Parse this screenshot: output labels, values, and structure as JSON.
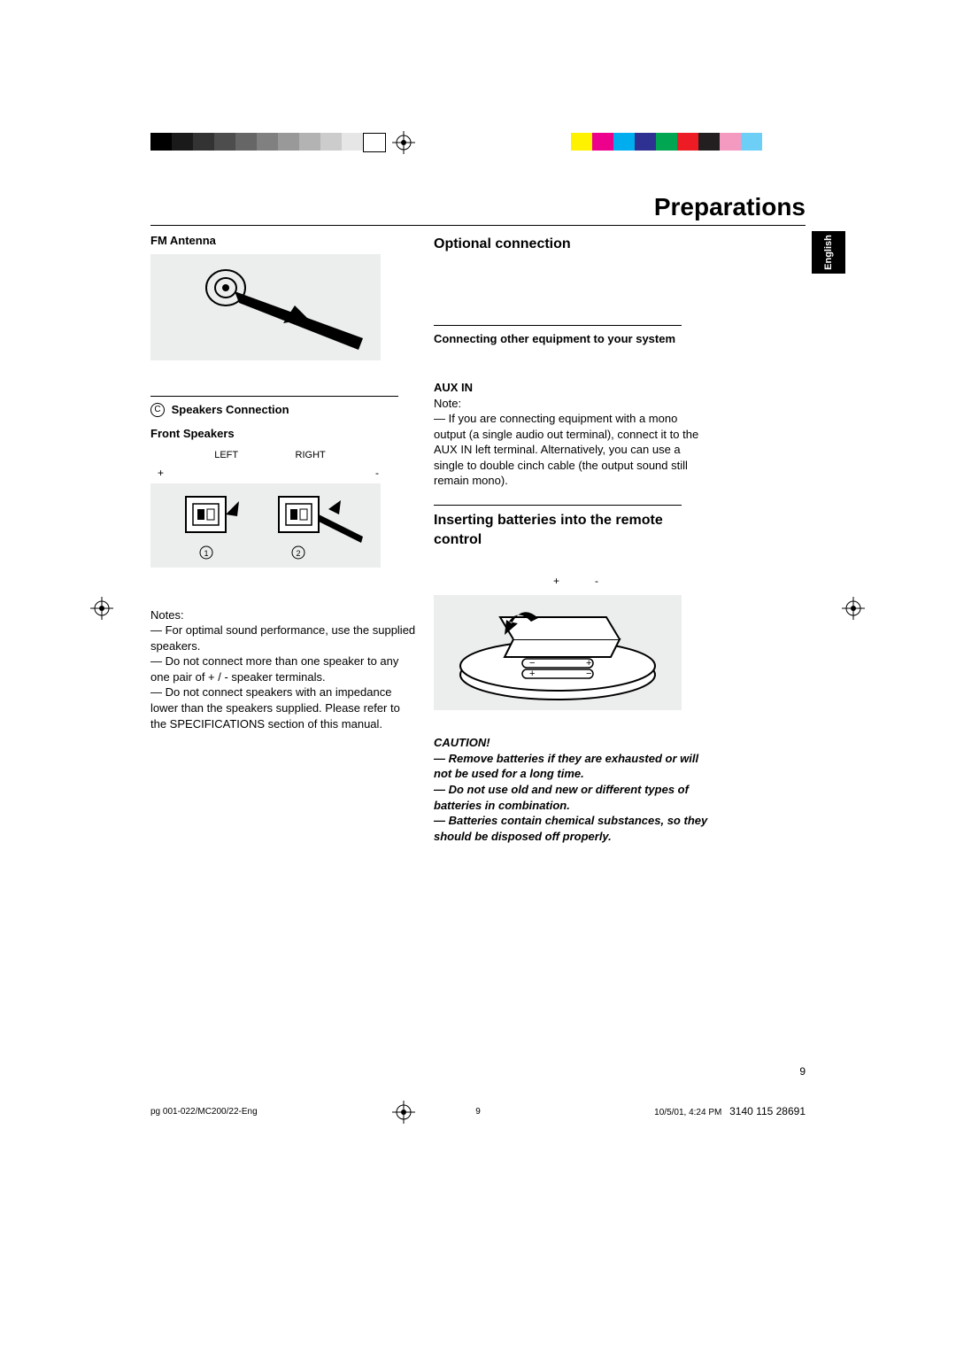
{
  "page": {
    "title": "Preparations",
    "lang_tab": "English",
    "page_number": "9",
    "footer_file": "pg 001-022/MC200/22-Eng",
    "footer_page": "9",
    "footer_datetime": "10/5/01, 4:24 PM",
    "footer_code": "3140 115 28691"
  },
  "colorbars": {
    "grey": [
      "#000000",
      "#1a1a1a",
      "#333333",
      "#4d4d4d",
      "#666666",
      "#808080",
      "#999999",
      "#b3b3b3",
      "#cccccc",
      "#e6e6e6",
      "#ffffff"
    ],
    "color": [
      "#fff200",
      "#ec008c",
      "#00aeef",
      "#2e3192",
      "#00a651",
      "#ed1c24",
      "#231f20",
      "#f49ac1",
      "#6dcff6",
      "#ffffff"
    ],
    "swatch_w": 24,
    "grey_swatch_w": 24
  },
  "left": {
    "fm_heading": "FM Antenna",
    "speakers_conn_letter": "C",
    "speakers_conn": "Speakers Connection",
    "front_speakers": "Front Speakers",
    "label_left": "LEFT",
    "label_right": "RIGHT",
    "plus": "+",
    "minus": "-",
    "notes_label": "Notes:",
    "note1": "— For optimal sound performance, use the supplied speakers.",
    "note2": "— Do not connect more than one speaker to any one pair of + / -  speaker terminals.",
    "note3": "— Do not connect speakers with an impedance lower than the speakers supplied.  Please refer to the SPECIFICATIONS section of this manual."
  },
  "right": {
    "optional_heading": "Optional connection",
    "connecting_heading": "Connecting other equipment to your system",
    "aux_heading": "AUX IN",
    "aux_note_label": "Note:",
    "aux_note": "— If you are connecting equipment with a mono output (a single audio out terminal), connect it to the AUX IN left terminal.  Alternatively, you can use a  single to double  cinch cable (the output sound still remain mono).",
    "batteries_heading": "Inserting batteries into the remote control",
    "battery_plus": "+",
    "battery_minus": "-",
    "caution_label": "CAUTION!",
    "caution1": "— Remove batteries if they are exhausted or will not be used for a long time.",
    "caution2": "— Do not use old and new or different types of batteries in combination.",
    "caution3": "— Batteries contain chemical substances, so they should be disposed off properly."
  }
}
